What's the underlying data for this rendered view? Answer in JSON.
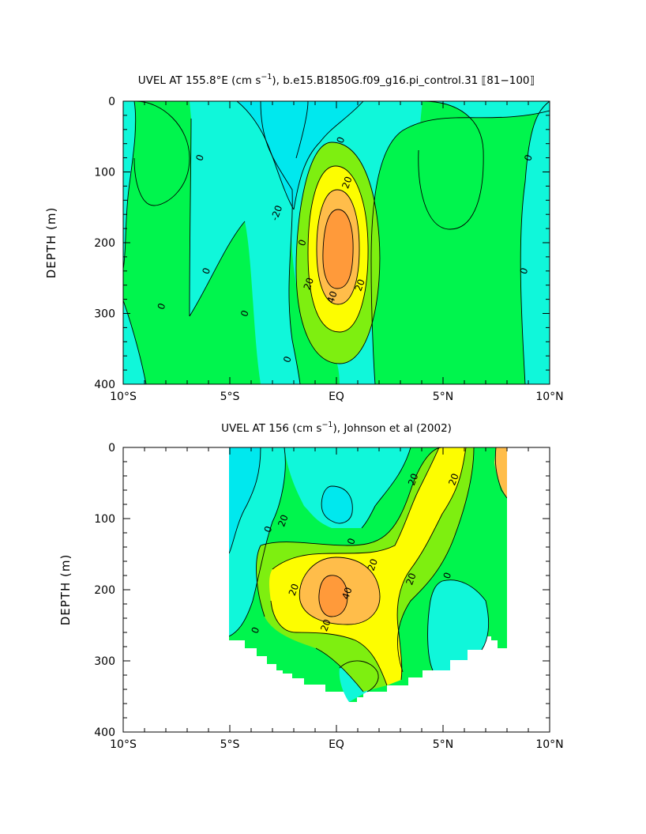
{
  "colors": {
    "lt_neg20": "#00e8ee",
    "neg20_0": "#10f7da",
    "0_10": "#00f54d",
    "10_20": "#7eef10",
    "20_30": "#fdfd00",
    "30_40": "#ffbd4a",
    "gt40": "#ff9a3a"
  },
  "chart_data": [
    {
      "type": "heatmap",
      "title_main": "UVEL AT 155.8°E (cm s",
      "title_sup": "−1",
      "title_rest": "), b.e15.B1850G.f09_g16.pi_control.31 ⟦81−100⟧",
      "ylabel": "DEPTH (m)",
      "xlabel": "",
      "xlim": [
        -10,
        10
      ],
      "ylim": [
        400,
        0
      ],
      "x_ticks": [
        -10,
        -5,
        0,
        5,
        10
      ],
      "x_tick_labels": [
        "10°S",
        "5°S",
        "EQ",
        "5°N",
        "10°N"
      ],
      "y_ticks": [
        0,
        100,
        200,
        300,
        400
      ],
      "y_tick_labels": [
        "0",
        "100",
        "200",
        "300",
        "400"
      ],
      "contour_levels": [
        -20,
        0,
        10,
        20,
        30,
        40
      ],
      "contour_labels": [
        {
          "x": -8.2,
          "y": 290,
          "text": "0"
        },
        {
          "x": -6.4,
          "y": 80,
          "text": "0"
        },
        {
          "x": -6.1,
          "y": 240,
          "text": "0"
        },
        {
          "x": -4.3,
          "y": 300,
          "text": "0"
        },
        {
          "x": -2.8,
          "y": 158,
          "text": "-20"
        },
        {
          "x": -1.6,
          "y": 200,
          "text": "0"
        },
        {
          "x": -2.3,
          "y": 365,
          "text": "0"
        },
        {
          "x": 0.2,
          "y": 55,
          "text": "0"
        },
        {
          "x": 0.5,
          "y": 115,
          "text": "20"
        },
        {
          "x": -1.3,
          "y": 258,
          "text": "20"
        },
        {
          "x": -0.2,
          "y": 277,
          "text": "40"
        },
        {
          "x": 1.1,
          "y": 260,
          "text": "20"
        },
        {
          "x": 9.0,
          "y": 80,
          "text": "0"
        },
        {
          "x": 8.8,
          "y": 240,
          "text": "0"
        }
      ]
    },
    {
      "type": "heatmap",
      "title_main": "UVEL AT 156 (cm s",
      "title_sup": "−1",
      "title_rest": "), Johnson et al (2002)",
      "ylabel": "DEPTH (m)",
      "xlabel": "",
      "xlim": [
        -10,
        10
      ],
      "ylim": [
        400,
        0
      ],
      "x_ticks": [
        -10,
        -5,
        0,
        5,
        10
      ],
      "x_tick_labels": [
        "10°S",
        "5°S",
        "EQ",
        "5°N",
        "10°N"
      ],
      "y_ticks": [
        0,
        100,
        200,
        300,
        400
      ],
      "y_tick_labels": [
        "0",
        "100",
        "200",
        "300",
        "400"
      ],
      "data_extent_x": [
        -5,
        8
      ],
      "contour_levels": [
        -20,
        0,
        10,
        20,
        30,
        40
      ],
      "contour_labels": [
        {
          "x": -3.2,
          "y": 115,
          "text": "0"
        },
        {
          "x": -2.5,
          "y": 103,
          "text": "20"
        },
        {
          "x": 0.7,
          "y": 132,
          "text": "0"
        },
        {
          "x": 3.6,
          "y": 45,
          "text": "20"
        },
        {
          "x": 5.5,
          "y": 45,
          "text": "20"
        },
        {
          "x": 1.7,
          "y": 165,
          "text": "20"
        },
        {
          "x": -2.0,
          "y": 200,
          "text": "20"
        },
        {
          "x": 0.5,
          "y": 205,
          "text": "40"
        },
        {
          "x": 3.5,
          "y": 185,
          "text": "20"
        },
        {
          "x": 5.2,
          "y": 180,
          "text": "0"
        },
        {
          "x": -0.5,
          "y": 250,
          "text": "20"
        },
        {
          "x": -3.8,
          "y": 257,
          "text": "0"
        }
      ]
    }
  ]
}
